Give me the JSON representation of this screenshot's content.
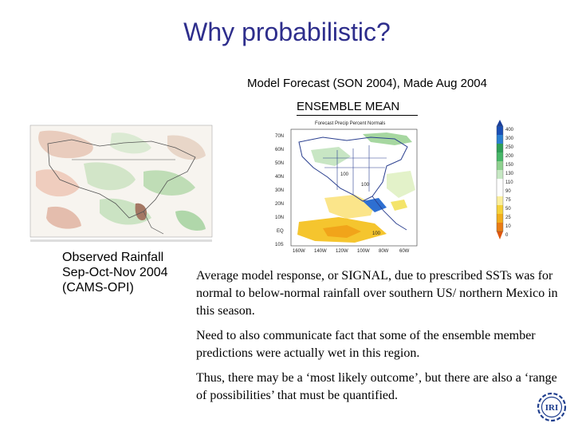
{
  "slide": {
    "title": "Why probabilistic?",
    "subtitle": "Model Forecast (SON 2004), Made Aug 2004",
    "ensemble_label": "ENSEMBLE MEAN"
  },
  "forecast_map": {
    "map_title": "Forecast   Precip   Percent Normals",
    "lat_labels": [
      "70N",
      "60N",
      "50N",
      "40N",
      "30N",
      "20N",
      "10N",
      "EQ",
      "10S"
    ],
    "lon_labels": [
      "160W",
      "140W",
      "120W",
      "100W",
      "80W",
      "60W"
    ],
    "colorbar_labels": [
      "400",
      "300",
      "250",
      "200",
      "150",
      "130",
      "110",
      "90",
      "75",
      "50",
      "25",
      "10",
      "0"
    ],
    "contour_labels": [
      "100",
      "100",
      "100"
    ]
  },
  "observed": {
    "label_lines": [
      "Observed Rainfall",
      "Sep-Oct-Nov 2004",
      "(CAMS-OPI)"
    ]
  },
  "paragraphs": [
    "Average model response, or SIGNAL, due to prescribed SSTs was for normal to below-normal rainfall over southern US/ northern Mexico in this season.",
    "Need to also communicate fact that some of the ensemble member predictions were actually wet in this region.",
    "Thus, there may be a ‘most likely outcome’, but there are also a ‘range of possibilities’ that must be quantified."
  ],
  "logo": {
    "text": "IRI"
  },
  "colors": {
    "title": "#2e2e8c",
    "logo": "#1f3e8e"
  },
  "icons": [
    "iri-logo-icon"
  ]
}
